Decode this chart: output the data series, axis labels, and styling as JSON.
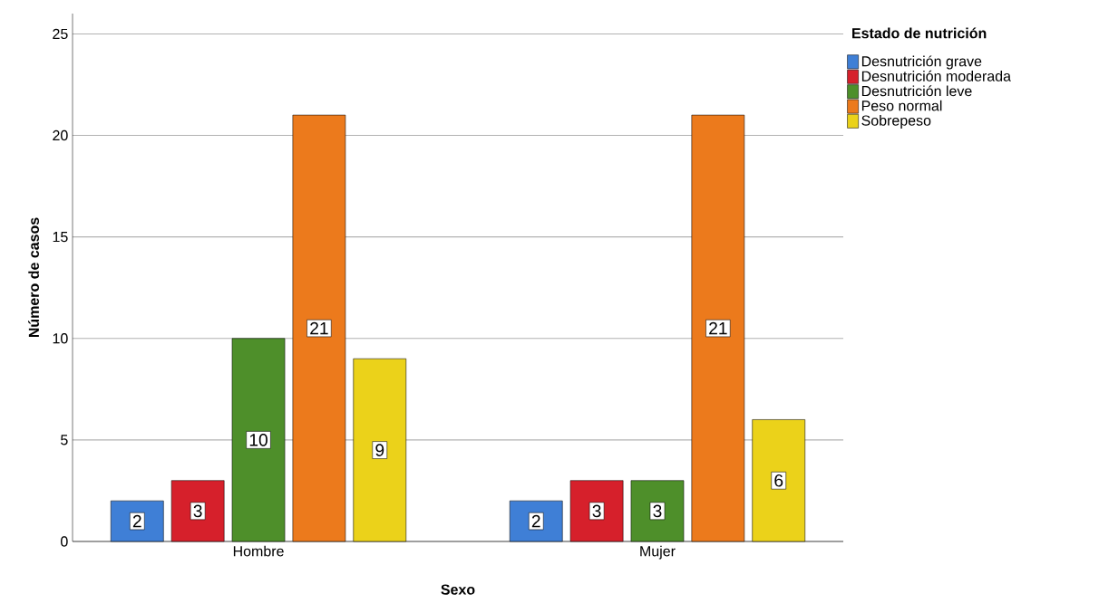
{
  "chart_data": {
    "type": "bar",
    "xlabel": "Sexo",
    "ylabel": "Número de casos",
    "legend_title": "Estado de nutrición",
    "categories": [
      "Hombre",
      "Mujer"
    ],
    "series": [
      {
        "name": "Desnutrición grave",
        "color": "#3f7fd6",
        "values": [
          2,
          2
        ]
      },
      {
        "name": "Desnutrición moderada",
        "color": "#d6202b",
        "values": [
          3,
          3
        ]
      },
      {
        "name": "Desnutrición leve",
        "color": "#4e8f2a",
        "values": [
          10,
          3
        ]
      },
      {
        "name": "Peso normal",
        "color": "#ec7a1c",
        "values": [
          21,
          21
        ]
      },
      {
        "name": "Sobrepeso",
        "color": "#ebd21a",
        "values": [
          9,
          6
        ]
      }
    ],
    "ylim": [
      0,
      26
    ],
    "yticks": [
      0,
      5,
      10,
      15,
      20,
      25
    ],
    "grid": "y",
    "legend": "top right",
    "data_labels": true
  }
}
